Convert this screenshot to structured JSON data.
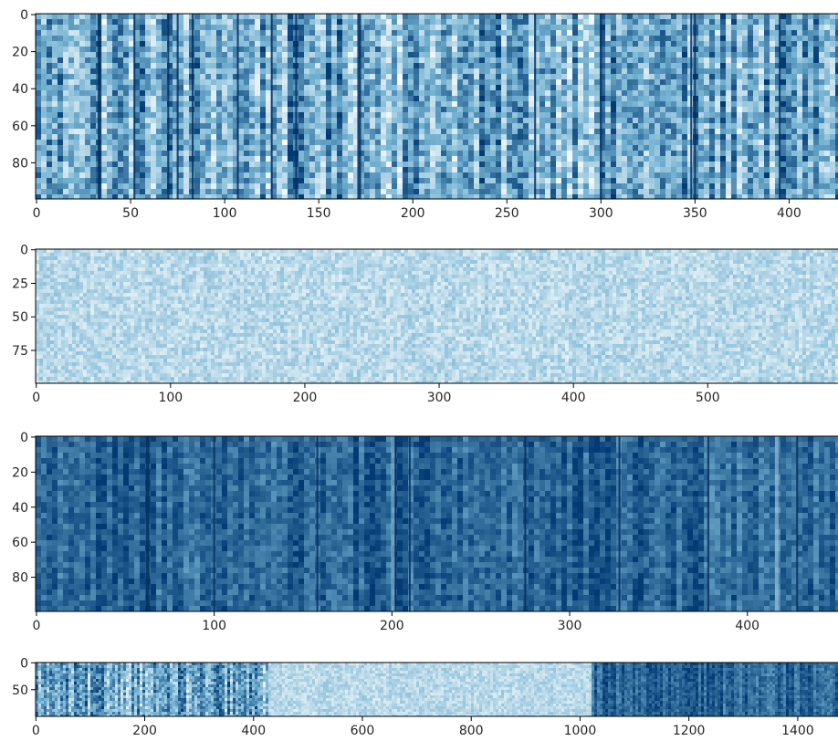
{
  "chart_data": [
    {
      "type": "heatmap",
      "title": "",
      "xlabel": "",
      "ylabel": "",
      "xlim": [
        -0.5,
        426
      ],
      "ylim": [
        99.5,
        -0.5
      ],
      "rows": 100,
      "x_ticks": [
        0,
        50,
        100,
        150,
        200,
        250,
        300,
        350,
        400
      ],
      "y_ticks": [
        0,
        20,
        40,
        60,
        80
      ],
      "colormap": "white-to-dark-blue",
      "color_low": "#f7fcfd",
      "color_high": "#023b74",
      "mean_intensity": 0.52,
      "noise_level": 0.55,
      "stripe_strength": 0.55,
      "dark_stripe_columns": [
        33,
        34,
        52,
        70,
        75,
        83,
        107,
        125,
        138,
        171,
        172,
        265,
        300,
        348,
        350,
        395
      ]
    },
    {
      "type": "heatmap",
      "title": "",
      "xlabel": "",
      "ylabel": "",
      "xlim": [
        -0.5,
        597
      ],
      "ylim": [
        99.5,
        -0.5
      ],
      "rows": 100,
      "x_ticks": [
        0,
        100,
        200,
        300,
        400,
        500
      ],
      "y_ticks": [
        0,
        25,
        50,
        75
      ],
      "colormap": "white-to-dark-blue",
      "color_low": "#f7fcfd",
      "color_high": "#023b74",
      "mean_intensity": 0.24,
      "noise_level": 0.28,
      "stripe_strength": 0.05,
      "dark_stripe_columns": []
    },
    {
      "type": "heatmap",
      "title": "",
      "xlabel": "",
      "ylabel": "",
      "xlim": [
        -0.5,
        451
      ],
      "ylim": [
        99.5,
        -0.5
      ],
      "rows": 100,
      "x_ticks": [
        0,
        100,
        200,
        300,
        400
      ],
      "y_ticks": [
        0,
        20,
        40,
        60,
        80
      ],
      "colormap": "white-to-dark-blue",
      "color_low": "#f7fcfd",
      "color_high": "#023b74",
      "mean_intensity": 0.82,
      "noise_level": 0.25,
      "stripe_strength": 0.25,
      "dark_stripe_columns": [
        62,
        63,
        100,
        158,
        202,
        210,
        275,
        328,
        378,
        428
      ],
      "light_stripe_columns": [
        200,
        201,
        416,
        417
      ]
    },
    {
      "type": "heatmap",
      "title": "",
      "xlabel": "",
      "ylabel": "",
      "xlim": [
        -0.5,
        1474
      ],
      "ylim": [
        99.5,
        -0.5
      ],
      "rows": 100,
      "x_ticks": [
        0,
        200,
        400,
        600,
        800,
        1000,
        1200,
        1400
      ],
      "y_ticks": [
        0,
        50
      ],
      "colormap": "white-to-dark-blue",
      "color_low": "#f7fcfd",
      "color_high": "#023b74",
      "segments": [
        {
          "start": 0,
          "end": 426,
          "mean_intensity": 0.52,
          "noise_level": 0.5,
          "stripe_strength": 0.5
        },
        {
          "start": 426,
          "end": 1023,
          "mean_intensity": 0.24,
          "noise_level": 0.25,
          "stripe_strength": 0.05
        },
        {
          "start": 1023,
          "end": 1474,
          "mean_intensity": 0.82,
          "noise_level": 0.22,
          "stripe_strength": 0.25
        }
      ]
    }
  ]
}
